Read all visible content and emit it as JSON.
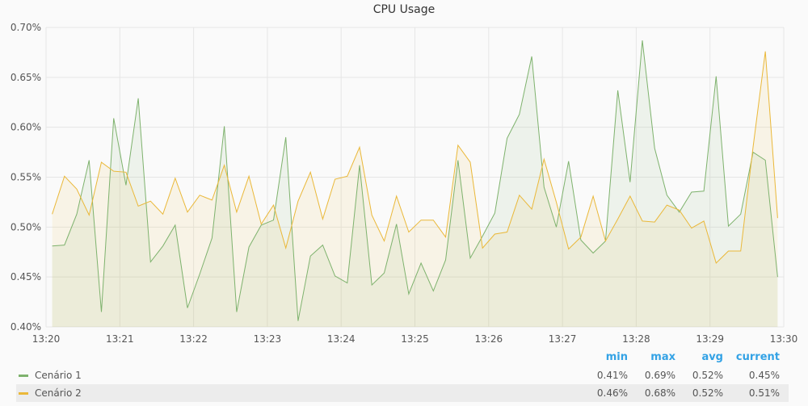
{
  "panel": {
    "title": "CPU Usage"
  },
  "legend": {
    "columns": [
      "min",
      "max",
      "avg",
      "current"
    ],
    "rows": [
      {
        "name": "Cenário 1",
        "color": "#7eb26d",
        "min": "0.41%",
        "max": "0.69%",
        "avg": "0.52%",
        "current": "0.45%"
      },
      {
        "name": "Cenário 2",
        "color": "#eab839",
        "min": "0.46%",
        "max": "0.68%",
        "avg": "0.52%",
        "current": "0.51%"
      }
    ]
  },
  "chart_data": {
    "type": "area",
    "title": "CPU Usage",
    "x_ticks": [
      "13:20",
      "13:21",
      "13:22",
      "13:23",
      "13:24",
      "13:25",
      "13:26",
      "13:27",
      "13:28",
      "13:29",
      "13:30"
    ],
    "y_ticks": [
      "0.40%",
      "0.45%",
      "0.50%",
      "0.55%",
      "0.60%",
      "0.65%",
      "0.70%"
    ],
    "xlim": [
      "13:20",
      "13:30"
    ],
    "ylim": [
      0.4,
      0.7
    ],
    "y_unit": "%",
    "grid": true,
    "legend": "bottom",
    "x": [
      "13:20:05",
      "13:20:15",
      "13:20:25",
      "13:20:35",
      "13:20:45",
      "13:20:55",
      "13:21:05",
      "13:21:15",
      "13:21:25",
      "13:21:35",
      "13:21:45",
      "13:21:55",
      "13:22:05",
      "13:22:15",
      "13:22:25",
      "13:22:35",
      "13:22:45",
      "13:22:55",
      "13:23:05",
      "13:23:15",
      "13:23:25",
      "13:23:35",
      "13:23:45",
      "13:23:55",
      "13:24:05",
      "13:24:15",
      "13:24:25",
      "13:24:35",
      "13:24:45",
      "13:24:55",
      "13:25:05",
      "13:25:15",
      "13:25:25",
      "13:25:35",
      "13:25:45",
      "13:25:55",
      "13:26:05",
      "13:26:15",
      "13:26:25",
      "13:26:35",
      "13:26:45",
      "13:26:55",
      "13:27:05",
      "13:27:15",
      "13:27:25",
      "13:27:35",
      "13:27:45",
      "13:27:55",
      "13:28:05",
      "13:28:15",
      "13:28:25",
      "13:28:35",
      "13:28:45",
      "13:28:55",
      "13:29:05",
      "13:29:15",
      "13:29:25",
      "13:29:35",
      "13:29:45",
      "13:29:55"
    ],
    "series": [
      {
        "name": "Cenário 1",
        "color": "#7eb26d",
        "values": [
          0.481,
          0.482,
          0.513,
          0.567,
          0.415,
          0.609,
          0.542,
          0.629,
          0.465,
          0.481,
          0.502,
          0.419,
          0.453,
          0.489,
          0.601,
          0.415,
          0.48,
          0.502,
          0.507,
          0.59,
          0.406,
          0.471,
          0.482,
          0.451,
          0.444,
          0.562,
          0.442,
          0.454,
          0.503,
          0.433,
          0.464,
          0.436,
          0.467,
          0.567,
          0.469,
          0.491,
          0.514,
          0.589,
          0.613,
          0.671,
          0.54,
          0.5,
          0.566,
          0.487,
          0.474,
          0.486,
          0.637,
          0.545,
          0.687,
          0.579,
          0.532,
          0.515,
          0.535,
          0.536,
          0.651,
          0.501,
          0.513,
          0.575,
          0.567,
          0.45
        ]
      },
      {
        "name": "Cenário 2",
        "color": "#eab839",
        "values": [
          0.513,
          0.551,
          0.538,
          0.512,
          0.565,
          0.556,
          0.555,
          0.521,
          0.526,
          0.513,
          0.549,
          0.515,
          0.532,
          0.527,
          0.562,
          0.515,
          0.551,
          0.503,
          0.522,
          0.479,
          0.526,
          0.555,
          0.508,
          0.548,
          0.551,
          0.58,
          0.512,
          0.486,
          0.531,
          0.495,
          0.507,
          0.507,
          0.49,
          0.582,
          0.565,
          0.479,
          0.493,
          0.495,
          0.532,
          0.518,
          0.568,
          0.525,
          0.478,
          0.49,
          0.531,
          0.486,
          0.508,
          0.531,
          0.506,
          0.505,
          0.522,
          0.517,
          0.499,
          0.506,
          0.464,
          0.476,
          0.476,
          0.58,
          0.676,
          0.509
        ]
      }
    ]
  }
}
